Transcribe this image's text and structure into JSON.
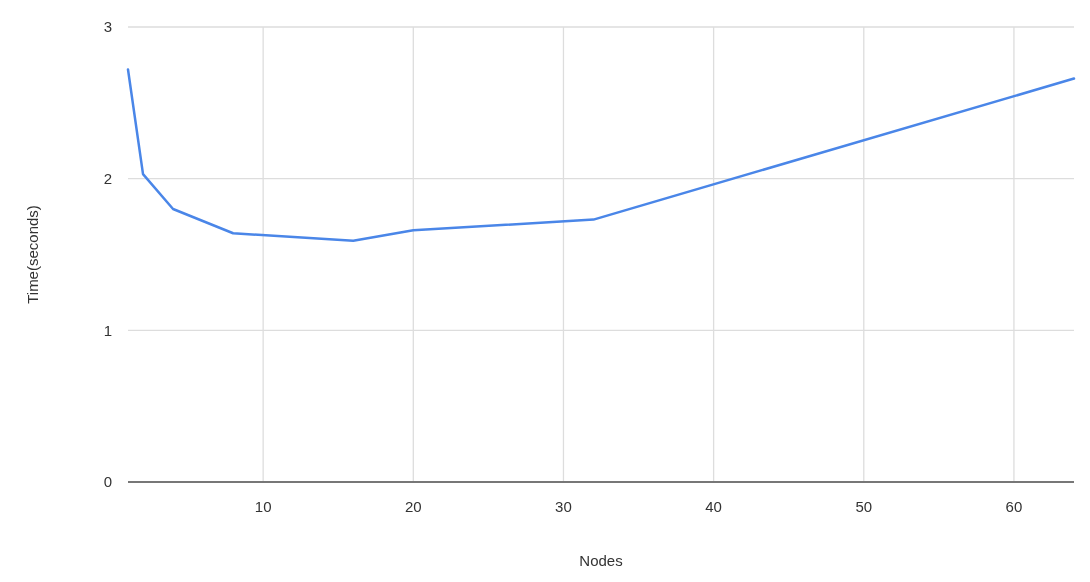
{
  "chart_data": {
    "type": "line",
    "xlabel": "Nodes",
    "ylabel": "Time(seconds)",
    "x": [
      1,
      2,
      4,
      8,
      16,
      20,
      32,
      64
    ],
    "series": [
      {
        "color": "#4a86e8",
        "values": [
          2.72,
          2.03,
          1.8,
          1.64,
          1.59,
          1.66,
          1.73,
          2.66
        ]
      }
    ],
    "xlim": [
      1,
      64
    ],
    "xticks": [
      10,
      20,
      30,
      40,
      50,
      60
    ],
    "ylim": [
      0,
      3
    ],
    "yticks": [
      0,
      1,
      2,
      3
    ],
    "grid": true,
    "marker": "none",
    "line_style": "solid"
  }
}
